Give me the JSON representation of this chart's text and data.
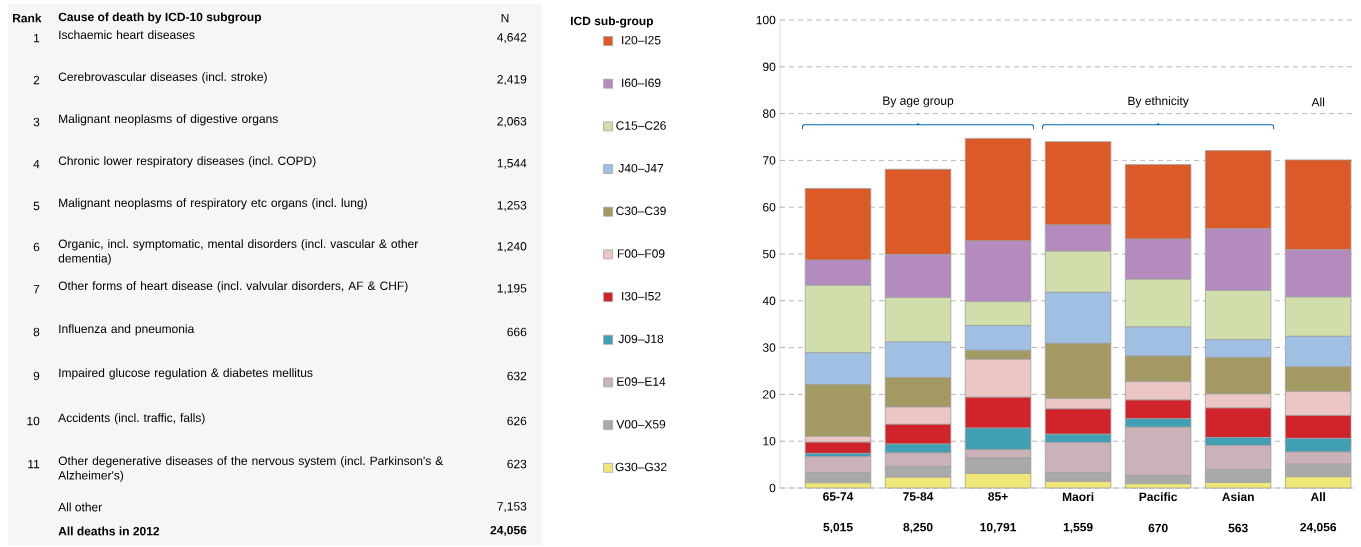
{
  "chart_data": {
    "type": "bar",
    "stacked": true,
    "legend_title": "ICD sub-group",
    "legend": "left",
    "grid": "y",
    "categories": [
      "65-74",
      "75-84",
      "85+",
      "Maori",
      "Pacific",
      "Asian",
      "All"
    ],
    "ylim": [
      0,
      100
    ],
    "yticks": [
      0,
      10,
      20,
      30,
      40,
      50,
      60,
      70,
      80,
      90,
      100
    ],
    "series": [
      {
        "name": "G30–G32",
        "color": "#efe878",
        "values": [
          1.1,
          2.3,
          3.1,
          1.4,
          0.9,
          1.2,
          2.4
        ]
      },
      {
        "name": "V00–X59",
        "color": "#a9a9a9",
        "values": [
          2.1,
          2.3,
          3.3,
          1.8,
          1.8,
          2.7,
          2.7
        ]
      },
      {
        "name": "E09–E14",
        "color": "#cbb1b8",
        "values": [
          3.5,
          2.9,
          1.8,
          6.5,
          10.3,
          5.2,
          2.6
        ]
      },
      {
        "name": "J09–J18",
        "color": "#409fb3",
        "values": [
          0.7,
          1.9,
          4.6,
          1.8,
          1.8,
          1.7,
          2.9
        ]
      },
      {
        "name": "I30–I52",
        "color": "#d0232a",
        "values": [
          2.4,
          4.2,
          6.6,
          5.4,
          4.0,
          6.3,
          4.9
        ]
      },
      {
        "name": "F00–F09",
        "color": "#ecc6c4",
        "values": [
          1.2,
          3.7,
          8.1,
          2.2,
          3.9,
          3.0,
          5.1
        ]
      },
      {
        "name": "C30–C39",
        "color": "#a39a63",
        "values": [
          11.1,
          6.3,
          1.9,
          11.8,
          5.5,
          7.8,
          5.3
        ]
      },
      {
        "name": "J40–J47",
        "color": "#9fbfe3",
        "values": [
          6.8,
          7.6,
          5.3,
          10.9,
          6.2,
          3.8,
          6.5
        ]
      },
      {
        "name": "C15–C26",
        "color": "#cfdeab",
        "values": [
          14.4,
          9.5,
          5.1,
          8.8,
          10.2,
          10.5,
          8.4
        ]
      },
      {
        "name": "I60–I69",
        "color": "#b48bbe",
        "values": [
          5.4,
          9.2,
          13.0,
          5.6,
          8.6,
          13.2,
          10.1
        ]
      },
      {
        "name": "I20–I25",
        "color": "#db5a27",
        "values": [
          15.3,
          18.2,
          21.9,
          17.8,
          15.9,
          16.7,
          19.2
        ]
      }
    ],
    "annotations": [
      "By age group",
      "By ethnicity",
      "All",
      "5,015",
      "8,250",
      "10,791",
      "1,559",
      "670",
      "563",
      "24,056",
      "Rank",
      "Cause of death by ICD-10 subgroup",
      "N",
      "1",
      "Ischaemic heart diseases",
      "4,642",
      "2",
      "Cerebrovascular diseases (incl. stroke)",
      "2,419",
      "3",
      "Malignant neoplasms of digestive organs",
      "2,063",
      "4",
      "Chronic lower respiratory diseases (incl. COPD)",
      "1,544",
      "5",
      "Malignant neoplasms of respiratory etc organs (incl. lung)",
      "1,253",
      "6",
      "Organic, incl. symptomatic, mental disorders (incl. vascular & other dementia)",
      "1,240",
      "7",
      "Other forms of heart disease (incl. valvular disorders, AF & CHF)",
      "1,195",
      "8",
      "Influenza and pneumonia",
      "666",
      "9",
      "Impaired glucose regulation & diabetes mellitus",
      "632",
      "10",
      "Accidents (incl. traffic, falls)",
      "626",
      "11",
      "Other degenerative diseases of the nervous system (incl. Parkinson's & Alzheimer's)",
      "623",
      "All other",
      "7,153",
      "All deaths in 2012",
      "24,056"
    ]
  }
}
